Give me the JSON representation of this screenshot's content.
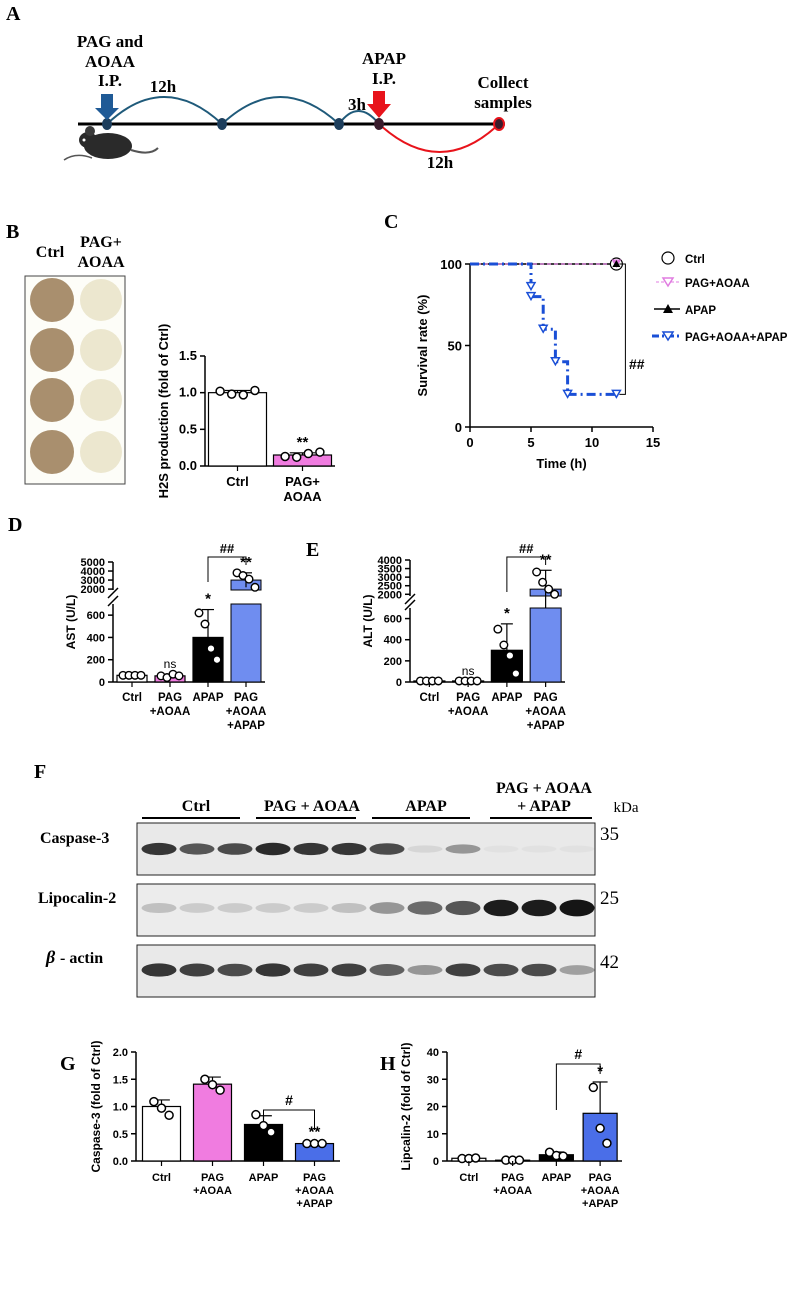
{
  "panelA": {
    "letter": "A",
    "pag_label_1": "PAG and",
    "pag_label_2": "AOAA",
    "pag_label_3": "I.P.",
    "interval_12h_top": "12h",
    "apap_label_1": "APAP",
    "apap_label_2": "I.P.",
    "interval_3h": "3h",
    "collect_1": "Collect",
    "collect_2": "samples",
    "interval_12h_bottom": "12h",
    "colors": {
      "pag_arrow": "#1f5a96",
      "apap_arrow": "#e8131b",
      "arc_blue": "#1f5a7a",
      "arc_red": "#e8131b"
    }
  },
  "panelB": {
    "letter": "B",
    "plate_col_1": "Ctrl",
    "plate_col_2a": "PAG+",
    "plate_col_2b": "AOAA",
    "significance": "**"
  },
  "panelF": {
    "letter": "F",
    "groups": [
      "Ctrl",
      "PAG + AOAA",
      "APAP",
      "PAG + AOAA",
      "+ APAP"
    ],
    "unit": "kDa",
    "rows": [
      {
        "label": "Caspase-3",
        "kda": "35"
      },
      {
        "label": "Lipocalin-2",
        "kda": "25"
      },
      {
        "label": "- actin",
        "greek": "β",
        "kda": "42"
      }
    ],
    "blot_intensity": {
      "caspase3": [
        0.85,
        0.7,
        0.75,
        0.9,
        0.85,
        0.85,
        0.75,
        0.1,
        0.4,
        0.05,
        0.05,
        0.05
      ],
      "lipocalin2": [
        0.2,
        0.15,
        0.15,
        0.15,
        0.15,
        0.2,
        0.4,
        0.6,
        0.7,
        0.97,
        0.97,
        1.0
      ],
      "actin": [
        0.85,
        0.8,
        0.75,
        0.85,
        0.8,
        0.8,
        0.65,
        0.4,
        0.8,
        0.75,
        0.75,
        0.35
      ]
    }
  },
  "chart_data": [
    {
      "id": "B",
      "type": "bar",
      "ylabel": "H2S production (fold of Ctrl)",
      "categories": [
        "Ctrl",
        "PAG+\nAOAA"
      ],
      "values": [
        1.0,
        0.15
      ],
      "errors": [
        0.03,
        0.03
      ],
      "points": [
        [
          1.02,
          0.98,
          0.97,
          1.03
        ],
        [
          0.13,
          0.12,
          0.17,
          0.19
        ]
      ],
      "ylim": [
        0,
        1.5
      ],
      "yticks": [
        "0.0",
        "0.5",
        "1.0",
        "1.5"
      ],
      "colors": [
        "#ffffff",
        "#f07ce0"
      ],
      "annotations": [
        "",
        "**"
      ]
    },
    {
      "id": "C",
      "type": "line",
      "letter": "C",
      "xlabel": "Time (h)",
      "ylabel": "Survival rate (%)",
      "xlim": [
        0,
        15
      ],
      "ylim": [
        0,
        100
      ],
      "xticks": [
        "0",
        "5",
        "10",
        "15"
      ],
      "yticks": [
        "0",
        "50",
        "100"
      ],
      "series": [
        {
          "name": "Ctrl",
          "x": [
            0,
            12
          ],
          "y": [
            100,
            100
          ],
          "color": "#000000"
        },
        {
          "name": "PAG+AOAA",
          "x": [
            0,
            12
          ],
          "y": [
            100,
            100
          ],
          "color": "#e07ce0"
        },
        {
          "name": "APAP",
          "x": [
            0,
            12
          ],
          "y": [
            100,
            100
          ],
          "color": "#000000"
        },
        {
          "name": "PAG+AOAA+APAP",
          "x": [
            0,
            5,
            6,
            7,
            8,
            12
          ],
          "y": [
            100,
            80,
            60,
            40,
            20,
            20
          ],
          "color": "#1a4fd6"
        }
      ],
      "annotation": "##",
      "legend": "right"
    },
    {
      "id": "D",
      "type": "bar",
      "letter": "D",
      "ylabel": "AST (U/L)",
      "categories": [
        "Ctrl",
        "PAG\n+AOAA",
        "APAP",
        "PAG\n+AOAA\n+APAP"
      ],
      "values": [
        60,
        55,
        400,
        3000
      ],
      "yticks_lower": [
        "0",
        "200",
        "400",
        "600"
      ],
      "yticks_upper": [
        "2000",
        "3000",
        "4000",
        "5000"
      ],
      "colors": [
        "#ffffff",
        "#f07ce0",
        "#000000",
        "#6f8df0"
      ],
      "annotations": [
        "",
        "ns",
        "*",
        "**"
      ],
      "comparison": "##"
    },
    {
      "id": "E",
      "type": "bar",
      "letter": "E",
      "ylabel": "ALT (U/L)",
      "categories": [
        "Ctrl",
        "PAG\n+AOAA",
        "APAP",
        "PAG\n+AOAA\n+APAP"
      ],
      "values": [
        10,
        10,
        300,
        2300
      ],
      "yticks_lower": [
        "0",
        "200",
        "400",
        "600"
      ],
      "yticks_upper": [
        "2000",
        "2500",
        "3000",
        "3500",
        "4000"
      ],
      "colors": [
        "#ffffff",
        "#f07ce0",
        "#000000",
        "#6f8df0"
      ],
      "annotations": [
        "",
        "ns",
        "*",
        "**"
      ],
      "comparison": "##"
    },
    {
      "id": "G",
      "type": "bar",
      "letter": "G",
      "ylabel": "Caspase-3 (fold of Ctrl)",
      "categories": [
        "Ctrl",
        "PAG\n+AOAA",
        "APAP",
        "PAG\n+AOAA\n+APAP"
      ],
      "values": [
        1.0,
        1.41,
        0.67,
        0.32
      ],
      "errors": [
        0.12,
        0.13,
        0.16,
        0.02
      ],
      "points": [
        [
          1.09,
          0.97,
          0.84
        ],
        [
          1.5,
          1.4,
          1.3
        ],
        [
          0.85,
          0.65,
          0.53
        ],
        [
          0.32,
          0.32,
          0.32
        ]
      ],
      "ylim": [
        0,
        2.0
      ],
      "yticks": [
        "0.0",
        "0.5",
        "1.0",
        "1.5",
        "2.0"
      ],
      "colors": [
        "#ffffff",
        "#f07ce0",
        "#000000",
        "#4a6ee8"
      ],
      "annotations": [
        "",
        "",
        "",
        "**"
      ],
      "comparison": "#"
    },
    {
      "id": "H",
      "type": "bar",
      "letter": "H",
      "ylabel": "Lipcalin-2 (fold of Ctrl)",
      "categories": [
        "Ctrl",
        "PAG\n+AOAA",
        "APAP",
        "PAG\n+AOAA\n+APAP"
      ],
      "values": [
        1.0,
        0.3,
        2.3,
        17.5
      ],
      "errors": [
        0.2,
        0.1,
        1.0,
        11.5
      ],
      "points": [
        [
          0.9,
          0.9,
          1.1
        ],
        [
          0.3,
          0.3,
          0.3
        ],
        [
          3.2,
          2.0,
          1.8
        ],
        [
          27,
          12,
          6.5
        ]
      ],
      "ylim": [
        0,
        40
      ],
      "yticks": [
        "0",
        "10",
        "20",
        "30",
        "40"
      ],
      "colors": [
        "#ffffff",
        "#ffffff",
        "#000000",
        "#4a6ee8"
      ],
      "annotations": [
        "",
        "",
        "",
        "*"
      ],
      "comparison": "#"
    }
  ]
}
